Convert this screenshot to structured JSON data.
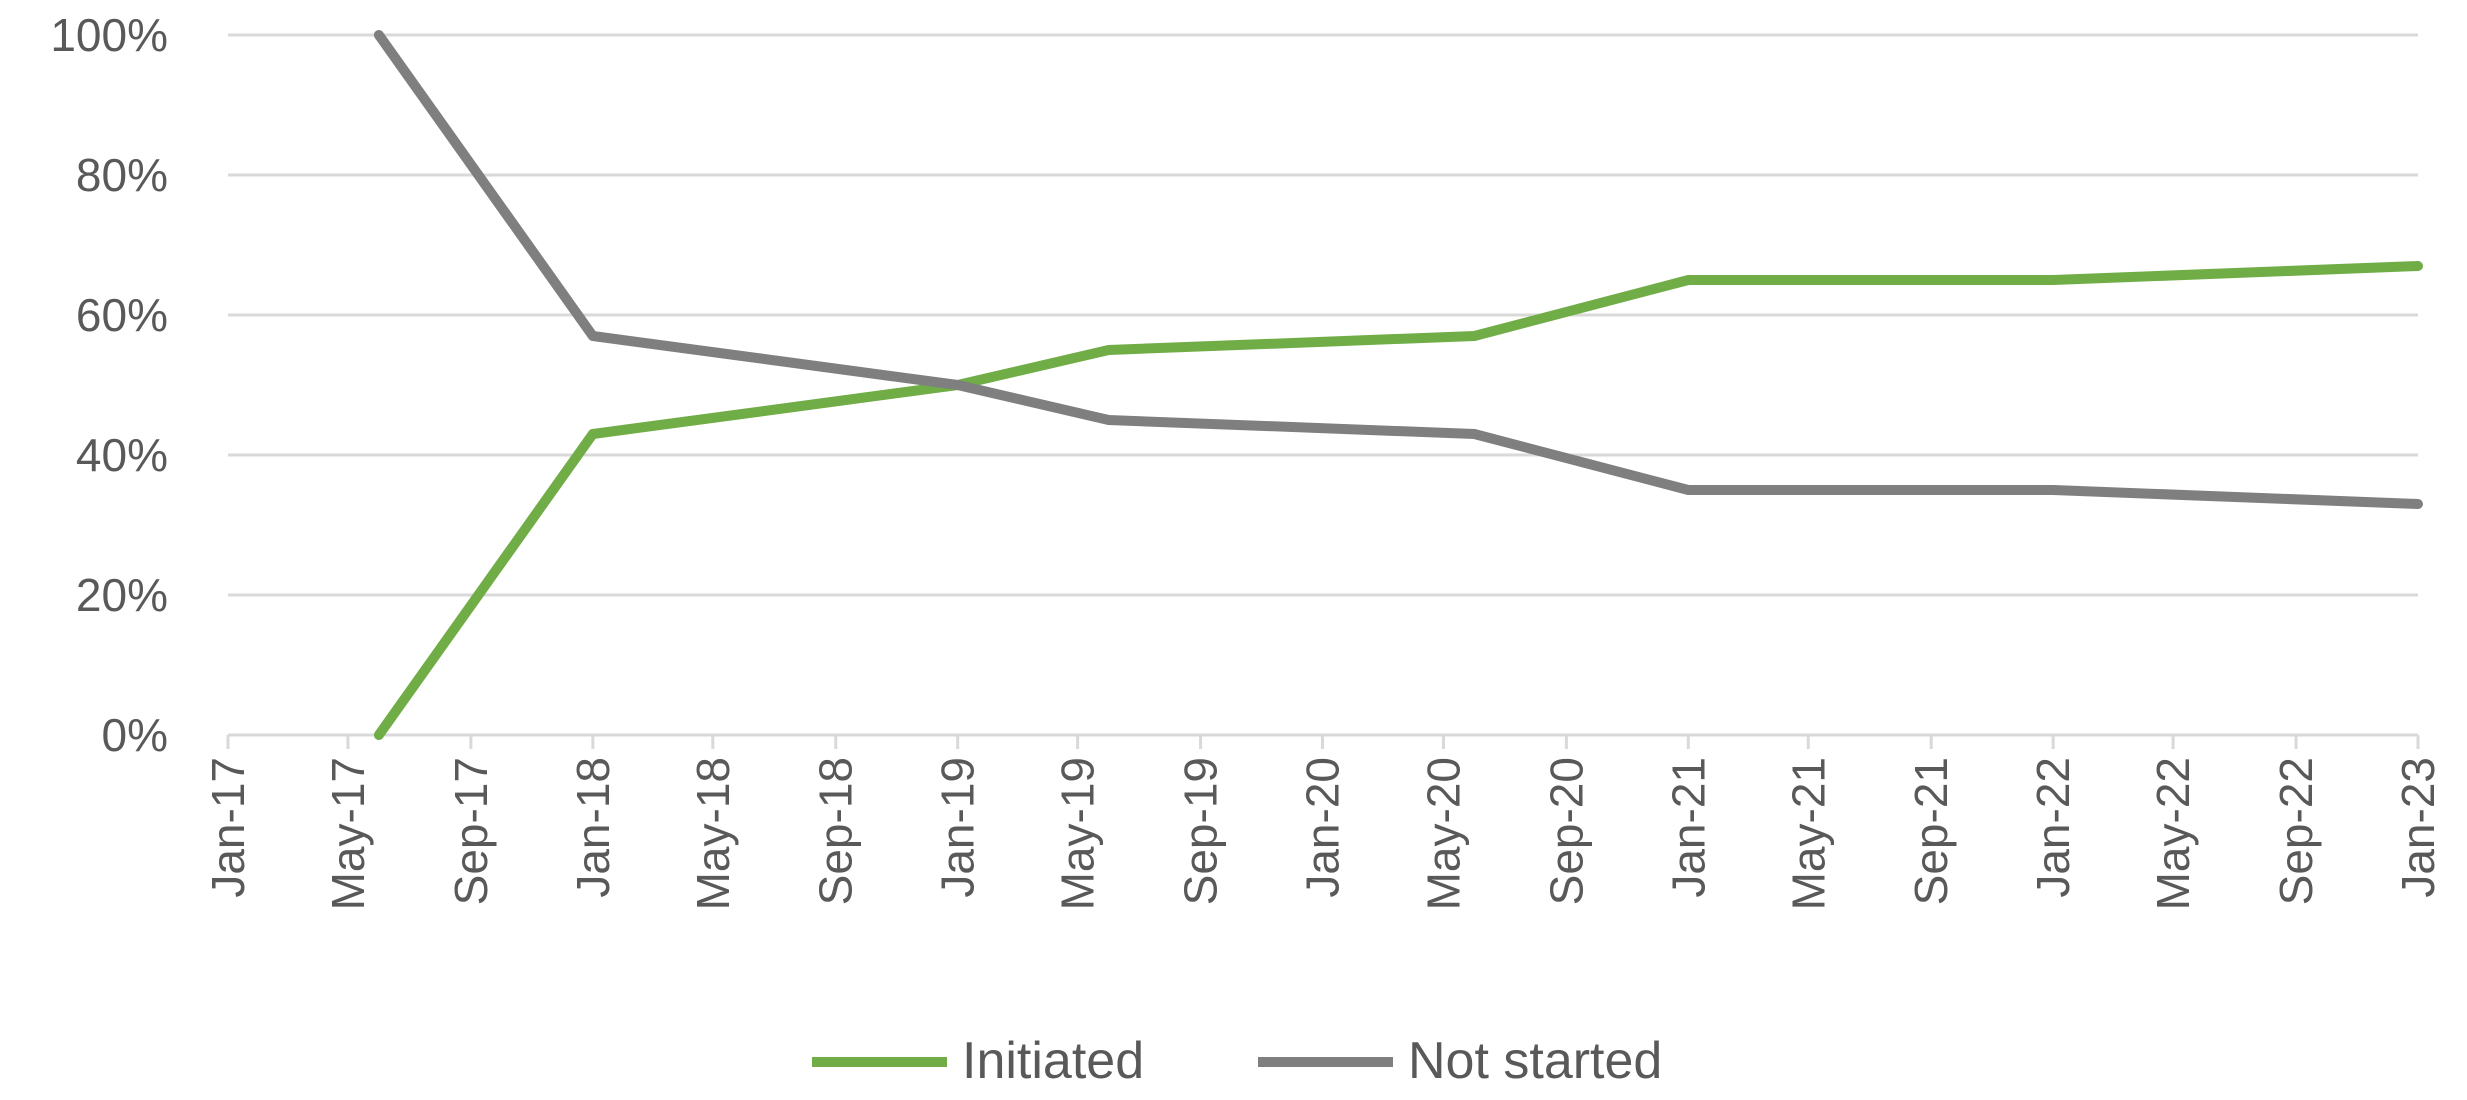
{
  "chart_data": {
    "type": "line",
    "title": "",
    "xlabel": "",
    "ylabel": "",
    "x": [
      "2017-06-01",
      "2018-01-01",
      "2019-01-01",
      "2019-06-01",
      "2020-06-01",
      "2021-01-01",
      "2022-01-01",
      "2023-01-01"
    ],
    "series": [
      {
        "name": "Initiated",
        "color": "#70ad47",
        "values": [
          0,
          43,
          50,
          55,
          57,
          65,
          65,
          67
        ]
      },
      {
        "name": "Not started",
        "color": "#7f7f7f",
        "values": [
          100,
          57,
          50,
          45,
          43,
          35,
          35,
          33
        ]
      }
    ],
    "ylim": [
      0,
      100
    ],
    "y_ticks": [
      0,
      20,
      40,
      60,
      80,
      100
    ],
    "y_tick_labels": [
      "0%",
      "20%",
      "40%",
      "60%",
      "80%",
      "100%"
    ],
    "x_ticks": [
      "2017-01-01",
      "2017-05-01",
      "2017-09-01",
      "2018-01-01",
      "2018-05-01",
      "2018-09-01",
      "2019-01-01",
      "2019-05-01",
      "2019-09-01",
      "2020-01-01",
      "2020-05-01",
      "2020-09-01",
      "2021-01-01",
      "2021-05-01",
      "2021-09-01",
      "2022-01-01",
      "2022-05-01",
      "2022-09-01",
      "2023-01-01"
    ],
    "x_tick_labels": [
      "Jan-17",
      "May-17",
      "Sep-17",
      "Jan-18",
      "May-18",
      "Sep-18",
      "Jan-19",
      "May-19",
      "Sep-19",
      "Jan-20",
      "May-20",
      "Sep-20",
      "Jan-21",
      "May-21",
      "Sep-21",
      "Jan-22",
      "May-22",
      "Sep-22",
      "Jan-23"
    ],
    "grid": "horizontal",
    "legend": "bottom-center",
    "gridline_color": "#d9d9d9",
    "axis_color": "#d9d9d9"
  }
}
